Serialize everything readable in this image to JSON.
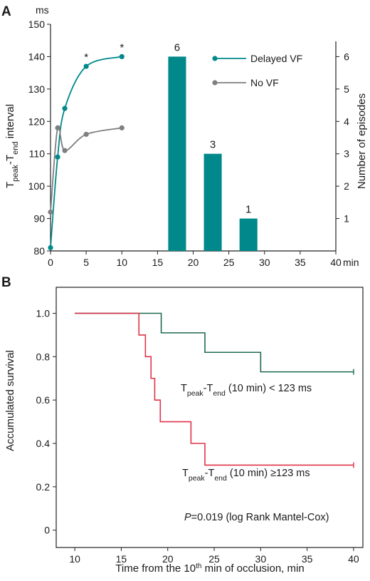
{
  "chart_data": [
    {
      "panel_letter": "A",
      "type": "line",
      "unit_label": "ms",
      "ylabel_main": "T",
      "ylabel_sub1": "peak",
      "ylabel_mid": "-T",
      "ylabel_sub2": "end",
      "ylabel_tail": " interval",
      "ylabel_right": "Number of episodes",
      "xunit": "min",
      "x_ticks": [
        "0",
        "5",
        "10",
        "15",
        "20",
        "25",
        "30",
        "35",
        "40"
      ],
      "xlim": [
        0,
        40
      ],
      "ylim": [
        80,
        150
      ],
      "y_ticks": [
        "80",
        "90",
        "100",
        "110",
        "120",
        "130",
        "140",
        "150"
      ],
      "ylim_right": [
        0,
        7
      ],
      "y2_ticks": [
        "1",
        "2",
        "3",
        "4",
        "5",
        "6"
      ],
      "legend_placement": "top-right",
      "series": [
        {
          "name": "Delayed VF",
          "color": "#00888a",
          "points": [
            [
              0,
              81
            ],
            [
              1,
              109
            ],
            [
              2,
              124
            ],
            [
              5,
              137
            ],
            [
              10,
              140
            ]
          ]
        },
        {
          "name": "No VF",
          "color": "#7f7f7f",
          "points": [
            [
              0,
              92
            ],
            [
              1,
              118
            ],
            [
              2,
              111
            ],
            [
              5,
              116
            ],
            [
              10,
              118
            ]
          ]
        }
      ],
      "significance": {
        "symbol": "*",
        "x": [
          5,
          10
        ]
      },
      "bars": {
        "color": "#00888a",
        "items": [
          {
            "x_from": 16.5,
            "x_to": 19,
            "value": 6,
            "label": "6"
          },
          {
            "x_from": 21.5,
            "x_to": 24,
            "value": 3,
            "label": "3"
          },
          {
            "x_from": 26.5,
            "x_to": 29,
            "value": 1,
            "label": "1"
          }
        ]
      }
    },
    {
      "panel_letter": "B",
      "type": "line",
      "ylabel": "Accumulated survival",
      "xlabel_pre": "Time from the 10",
      "xlabel_sup": "th",
      "xlabel_post": " min of occlusion, min",
      "xlim": [
        8,
        41
      ],
      "x_ticks": [
        "10",
        "15",
        "20",
        "25",
        "30",
        "35",
        "40"
      ],
      "ylim": [
        -0.08,
        1.12
      ],
      "y_ticks": [
        "0",
        "0.2",
        "0.4",
        "0.6",
        "0.8",
        "1.0"
      ],
      "series": [
        {
          "name": "Tpeak-Tend (10 min) < 123 ms",
          "color": "#1e6b4e",
          "steps": [
            [
              10,
              1.0
            ],
            [
              19.3,
              0.91
            ],
            [
              24,
              0.82
            ],
            [
              30,
              0.73
            ],
            [
              40,
              0.73
            ]
          ]
        },
        {
          "name": "Tpeak-Tend (10 min) ≥123 ms",
          "color": "#e0334a",
          "steps": [
            [
              10,
              1.0
            ],
            [
              16.9,
              0.9
            ],
            [
              17.6,
              0.8
            ],
            [
              18.2,
              0.7
            ],
            [
              18.6,
              0.6
            ],
            [
              19.2,
              0.5
            ],
            [
              22.5,
              0.4
            ],
            [
              24,
              0.3
            ],
            [
              40,
              0.3
            ]
          ]
        }
      ],
      "annotation1": {
        "a": "T",
        "b": "peak",
        "c": "-T",
        "d": "end",
        "e": " (10 min) < 123 ms"
      },
      "annotation2": {
        "a": "T",
        "b": "peak",
        "c": "-T",
        "d": "end",
        "e": " (10 min) ≥123 ms"
      },
      "pvalue": {
        "italic": "P",
        "rest": "=0.019 (log Rank Mantel-Cox)"
      }
    }
  ]
}
